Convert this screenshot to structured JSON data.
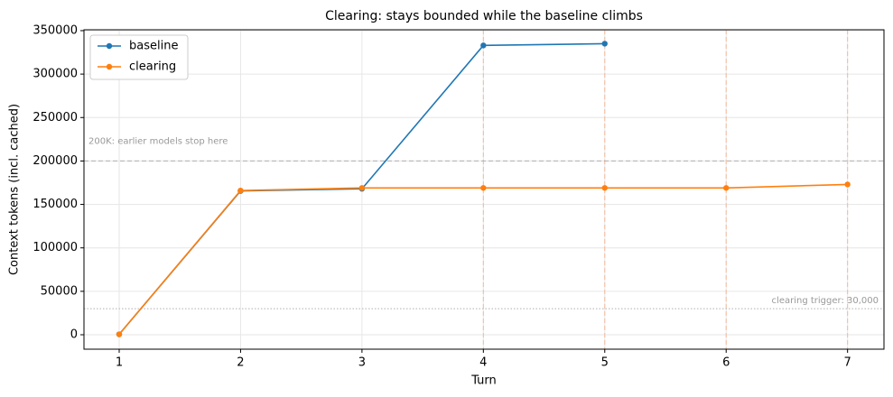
{
  "chart_data": {
    "type": "line",
    "title": "Clearing: stays bounded while the baseline climbs",
    "x_label": "Turn",
    "y_label": "Context tokens (incl. cached)",
    "x": [
      1,
      2,
      3,
      4,
      5,
      6,
      7
    ],
    "series": [
      {
        "name": "baseline",
        "color": "#1f77b4",
        "values": [
          500,
          165500,
          168000,
          333000,
          335000,
          null,
          null
        ]
      },
      {
        "name": "clearing",
        "color": "#ff7f0e",
        "values": [
          500,
          166000,
          169000,
          169000,
          169000,
          169000,
          173000
        ]
      }
    ],
    "xlim": [
      0.71,
      7.3
    ],
    "ylim": [
      -16600,
      351000
    ],
    "xticks": [
      1,
      2,
      3,
      4,
      5,
      6,
      7
    ],
    "yticks": [
      0,
      50000,
      100000,
      150000,
      200000,
      250000,
      300000,
      350000
    ],
    "hlines": [
      {
        "value": 200000,
        "label": "200K: earlier models stop here",
        "style": "dashed",
        "color": "#b0b0b0"
      },
      {
        "value": 30000,
        "label": "clearing trigger: 30,000",
        "style": "dotted",
        "color": "#b0b0b0"
      }
    ],
    "vlines": {
      "values": [
        4,
        5,
        6,
        7
      ],
      "color": "#f4b99a"
    },
    "grid": true,
    "legend": "upper left"
  }
}
